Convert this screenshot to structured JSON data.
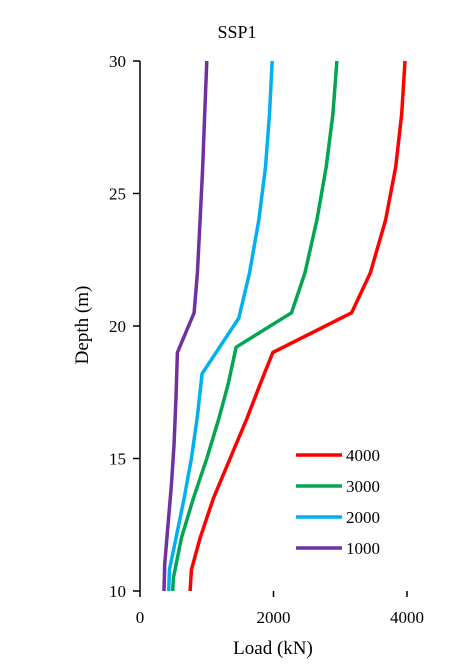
{
  "chart_data": {
    "type": "line",
    "title": "SSP1",
    "xlabel": "Load (kN)",
    "ylabel": "Depth (m)",
    "xlim": [
      0,
      4000
    ],
    "ylim": [
      10,
      30
    ],
    "x_ticks": [
      0,
      2000,
      4000
    ],
    "y_ticks": [
      10,
      15,
      20,
      25,
      30
    ],
    "grid": false,
    "legend_position": "bottom-right",
    "series": [
      {
        "name": "4000",
        "color": "#ff0000",
        "points": [
          [
            750,
            10
          ],
          [
            770,
            10.8
          ],
          [
            900,
            12
          ],
          [
            1100,
            13.5
          ],
          [
            1350,
            15
          ],
          [
            1600,
            16.5
          ],
          [
            1800,
            17.8
          ],
          [
            1990,
            19
          ],
          [
            3170,
            20.5
          ],
          [
            3450,
            22
          ],
          [
            3680,
            24
          ],
          [
            3830,
            26
          ],
          [
            3920,
            28
          ],
          [
            3970,
            30
          ]
        ]
      },
      {
        "name": "3000",
        "color": "#00a651",
        "points": [
          [
            490,
            10
          ],
          [
            500,
            10.5
          ],
          [
            620,
            12
          ],
          [
            800,
            13.5
          ],
          [
            1000,
            15
          ],
          [
            1180,
            16.5
          ],
          [
            1320,
            17.8
          ],
          [
            1440,
            19.2
          ],
          [
            2270,
            20.5
          ],
          [
            2470,
            22
          ],
          [
            2650,
            24
          ],
          [
            2790,
            26
          ],
          [
            2890,
            28
          ],
          [
            2950,
            30
          ]
        ]
      },
      {
        "name": "2000",
        "color": "#00b0f0",
        "points": [
          [
            430,
            10
          ],
          [
            440,
            10.8
          ],
          [
            540,
            12
          ],
          [
            660,
            13.5
          ],
          [
            770,
            15
          ],
          [
            860,
            16.6
          ],
          [
            930,
            18.2
          ],
          [
            1480,
            20.3
          ],
          [
            1640,
            22
          ],
          [
            1780,
            24
          ],
          [
            1880,
            26
          ],
          [
            1940,
            28
          ],
          [
            1980,
            30
          ]
        ]
      },
      {
        "name": "1000",
        "color": "#7030a0",
        "points": [
          [
            360,
            10
          ],
          [
            370,
            11
          ],
          [
            420,
            12.5
          ],
          [
            470,
            14
          ],
          [
            510,
            15.5
          ],
          [
            540,
            17.3
          ],
          [
            560,
            19
          ],
          [
            810,
            20.5
          ],
          [
            860,
            22
          ],
          [
            900,
            24
          ],
          [
            940,
            26
          ],
          [
            970,
            28
          ],
          [
            1000,
            30
          ]
        ]
      }
    ]
  }
}
